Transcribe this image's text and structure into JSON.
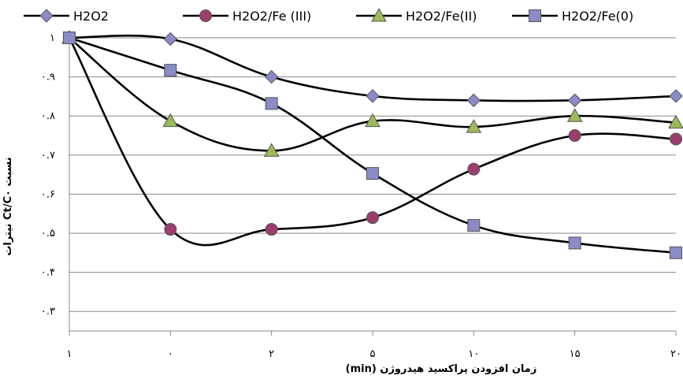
{
  "chart_data": {
    "type": "line",
    "xlabel": "زمان افزودن پراکسید هیدروژن (min)",
    "ylabel": "نسبت Ct/C۰ نیترات",
    "categories": [
      "۱",
      "۰",
      "۲",
      "۵",
      "۱۰",
      "۱۵",
      "۲۰"
    ],
    "ytick_labels": [
      "۰.۳",
      "۰.۴",
      "۰.۵",
      "۰.۶",
      "۰.۷",
      "۰.۸",
      "۰.۹",
      "۱"
    ],
    "ylim": [
      0.25,
      1.0
    ],
    "grid": true,
    "legend_position": "top",
    "series": [
      {
        "name": "H2O2",
        "color": "#8B8BC8",
        "marker": "diamond",
        "values": [
          1.0,
          0.997,
          0.9,
          0.851,
          0.84,
          0.84,
          0.851
        ]
      },
      {
        "name": "H2O2/Fe (III)",
        "color": "#9B3D6E",
        "marker": "circle",
        "values": [
          1.0,
          0.51,
          0.51,
          0.54,
          0.664,
          0.75,
          0.741
        ]
      },
      {
        "name": "H2O2/Fe(II)",
        "color": "#9BBB59",
        "marker": "triangle",
        "values": [
          1.0,
          0.787,
          0.711,
          0.787,
          0.772,
          0.8,
          0.783
        ]
      },
      {
        "name": "H2O2/Fe(0)",
        "color": "#8B8BC8",
        "marker": "square",
        "values": [
          1.0,
          0.917,
          0.832,
          0.653,
          0.52,
          0.475,
          0.45
        ]
      }
    ]
  }
}
